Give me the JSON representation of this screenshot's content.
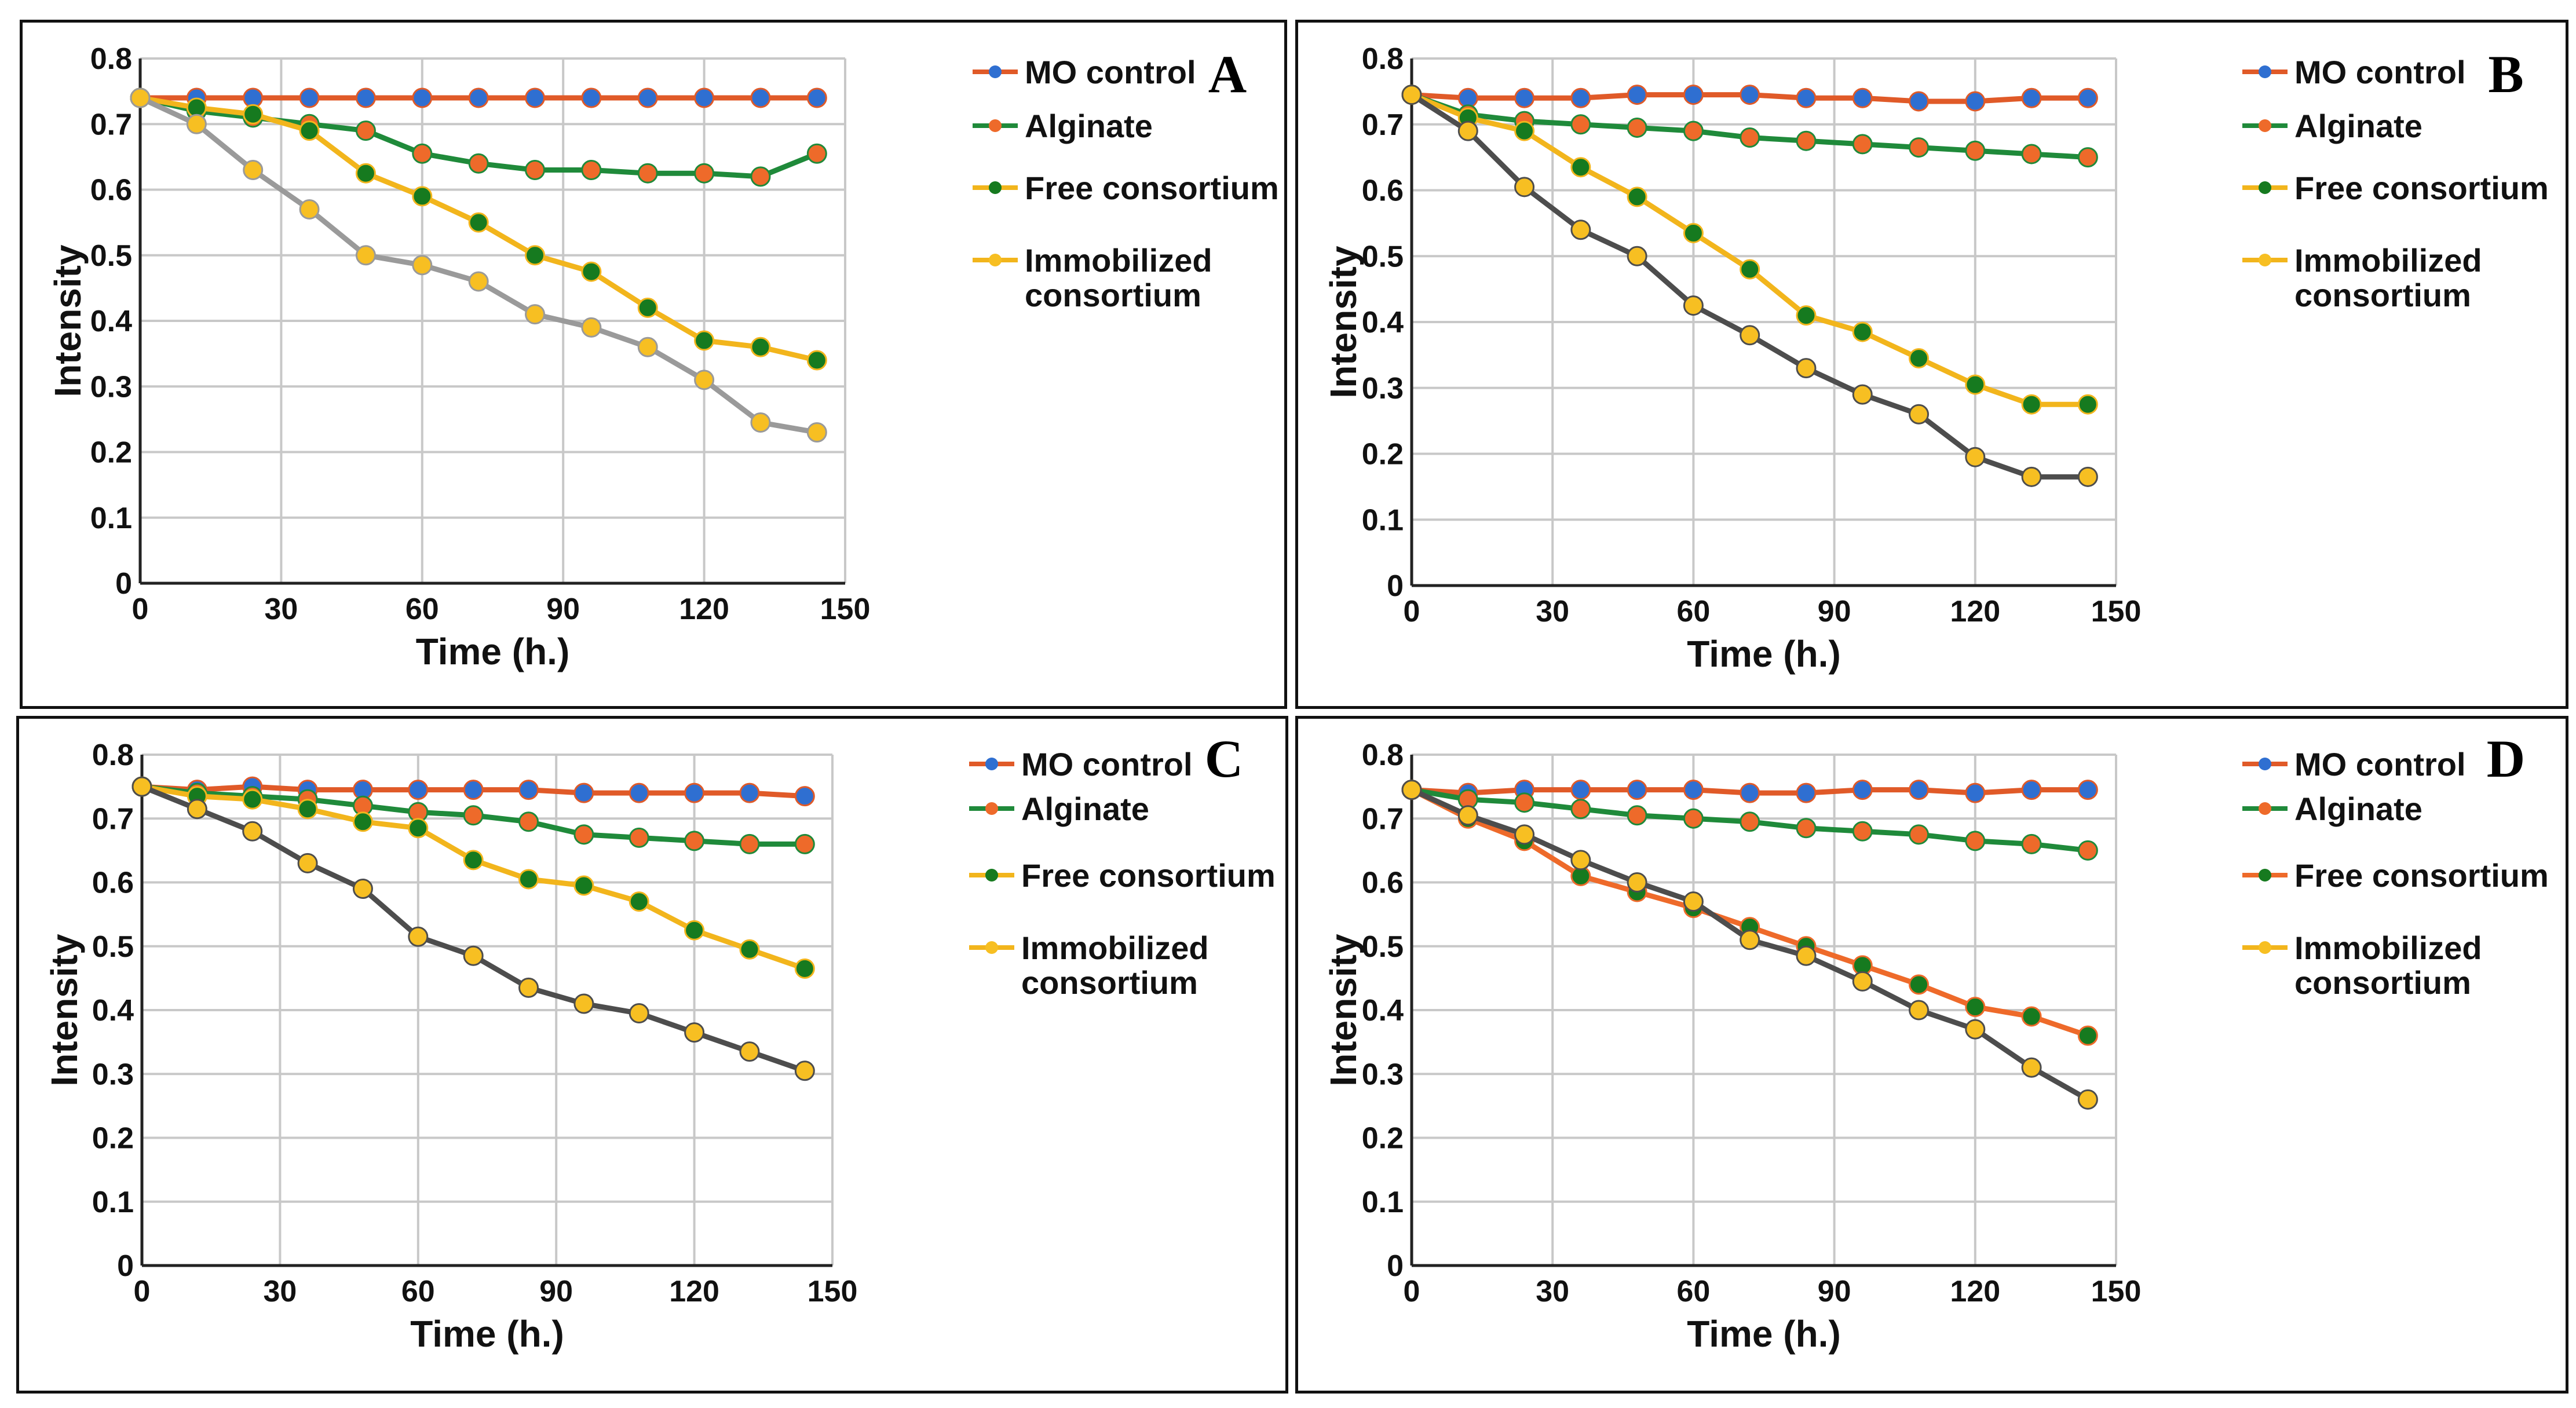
{
  "colors": {
    "mo_control_line": "#e05a28",
    "mo_control_marker": "#2f6fd1",
    "alginate_line": "#1f8a3a",
    "alginate_marker": "#ee6a2a",
    "free_line": "#f2b51c",
    "free_marker": "#167a1f",
    "immob_line_gray": "#9a9a9a",
    "immob_line_dark": "#4d4d4d",
    "immob_marker": "#f7bf22",
    "legend_immob_line": "#f2b51c",
    "grid": "#c8c8c8",
    "axis": "#222222"
  },
  "chart_data": [
    {
      "type": "line",
      "panel_label": "A",
      "xlabel": "Time (h.)",
      "ylabel": "Intensity",
      "xlim": [
        0,
        150
      ],
      "ylim": [
        0,
        0.8
      ],
      "x_ticks": [
        "0",
        "30",
        "60",
        "90",
        "120",
        "150"
      ],
      "y_ticks": [
        "0",
        "0.1",
        "0.2",
        "0.3",
        "0.4",
        "0.5",
        "0.6",
        "0.7",
        "0.8"
      ],
      "x": [
        0,
        12,
        24,
        36,
        48,
        60,
        72,
        84,
        96,
        108,
        120,
        132,
        144
      ],
      "legend": [
        "MO control",
        "Alginate",
        "Free consortium",
        "Immobilized consortium"
      ],
      "legend_lines": [
        [
          "MO control"
        ],
        [
          "Alginate"
        ],
        [
          "Free consortium"
        ],
        [
          "Immobilized",
          "consortium"
        ]
      ],
      "series": [
        {
          "name": "MO control",
          "line": "mo_control_line",
          "marker": "mo_control_marker",
          "values": [
            0.74,
            0.74,
            0.74,
            0.74,
            0.74,
            0.74,
            0.74,
            0.74,
            0.74,
            0.74,
            0.74,
            0.74,
            0.74
          ]
        },
        {
          "name": "Alginate",
          "line": "alginate_line",
          "marker": "alginate_marker",
          "values": [
            0.74,
            0.72,
            0.71,
            0.7,
            0.69,
            0.655,
            0.64,
            0.63,
            0.63,
            0.625,
            0.625,
            0.62,
            0.655
          ]
        },
        {
          "name": "Free consortium",
          "line": "free_line",
          "marker": "free_marker",
          "values": [
            0.74,
            0.725,
            0.715,
            0.69,
            0.625,
            0.59,
            0.55,
            0.5,
            0.475,
            0.42,
            0.37,
            0.36,
            0.34
          ]
        },
        {
          "name": "Immobilized consortium",
          "line": "immob_line_gray",
          "marker": "immob_marker",
          "values": [
            0.74,
            0.7,
            0.63,
            0.57,
            0.5,
            0.485,
            0.46,
            0.41,
            0.39,
            0.36,
            0.31,
            0.245,
            0.23
          ]
        }
      ]
    },
    {
      "type": "line",
      "panel_label": "B",
      "xlabel": "Time (h.)",
      "ylabel": "Intensity",
      "xlim": [
        0,
        150
      ],
      "ylim": [
        0,
        0.8
      ],
      "x_ticks": [
        "0",
        "30",
        "60",
        "90",
        "120",
        "150"
      ],
      "y_ticks": [
        "0",
        "0.1",
        "0.2",
        "0.3",
        "0.4",
        "0.5",
        "0.6",
        "0.7",
        "0.8"
      ],
      "x": [
        0,
        12,
        24,
        36,
        48,
        60,
        72,
        84,
        96,
        108,
        120,
        132,
        144
      ],
      "legend": [
        "MO control",
        "Alginate",
        "Free consortium",
        "Immobilized consortium"
      ],
      "legend_lines": [
        [
          "MO control"
        ],
        [
          "Alginate"
        ],
        [
          "Free consortium"
        ],
        [
          "Immobilized",
          "consortium"
        ]
      ],
      "series": [
        {
          "name": "MO control",
          "line": "mo_control_line",
          "marker": "mo_control_marker",
          "values": [
            0.745,
            0.74,
            0.74,
            0.74,
            0.745,
            0.745,
            0.745,
            0.74,
            0.74,
            0.735,
            0.735,
            0.74,
            0.74
          ]
        },
        {
          "name": "Alginate",
          "line": "alginate_line",
          "marker": "alginate_marker",
          "values": [
            0.745,
            0.715,
            0.705,
            0.7,
            0.695,
            0.69,
            0.68,
            0.675,
            0.67,
            0.665,
            0.66,
            0.655,
            0.65
          ]
        },
        {
          "name": "Free consortium",
          "line": "free_line",
          "marker": "free_marker",
          "values": [
            0.745,
            0.71,
            0.69,
            0.635,
            0.59,
            0.535,
            0.48,
            0.41,
            0.385,
            0.345,
            0.305,
            0.275,
            0.275
          ]
        },
        {
          "name": "Immobilized consortium",
          "line": "immob_line_dark",
          "marker": "immob_marker",
          "values": [
            0.745,
            0.69,
            0.605,
            0.54,
            0.5,
            0.425,
            0.38,
            0.33,
            0.29,
            0.26,
            0.195,
            0.165,
            0.165
          ]
        }
      ]
    },
    {
      "type": "line",
      "panel_label": "C",
      "xlabel": "Time (h.)",
      "ylabel": "Intensity",
      "xlim": [
        0,
        150
      ],
      "ylim": [
        0,
        0.8
      ],
      "x_ticks": [
        "0",
        "30",
        "60",
        "90",
        "120",
        "150"
      ],
      "y_ticks": [
        "0",
        "0.1",
        "0.2",
        "0.3",
        "0.4",
        "0.5",
        "0.6",
        "0.7",
        "0.8"
      ],
      "x": [
        0,
        12,
        24,
        36,
        48,
        60,
        72,
        84,
        96,
        108,
        120,
        132,
        144
      ],
      "legend": [
        "MO control",
        "Alginate",
        "Free consortium",
        "Immobilized consortium"
      ],
      "legend_lines": [
        [
          "MO control"
        ],
        [
          "Alginate"
        ],
        [
          "Free consortium"
        ],
        [
          "Immobilized",
          "consortium"
        ]
      ],
      "series": [
        {
          "name": "MO control",
          "line": "mo_control_line",
          "marker": "mo_control_marker",
          "values": [
            0.75,
            0.745,
            0.75,
            0.745,
            0.745,
            0.745,
            0.745,
            0.745,
            0.74,
            0.74,
            0.74,
            0.74,
            0.735
          ]
        },
        {
          "name": "Alginate",
          "line": "alginate_line",
          "marker": "alginate_marker",
          "values": [
            0.75,
            0.74,
            0.735,
            0.73,
            0.72,
            0.71,
            0.705,
            0.695,
            0.675,
            0.67,
            0.665,
            0.66,
            0.66
          ]
        },
        {
          "name": "Free consortium",
          "line": "free_line",
          "marker": "free_marker",
          "values": [
            0.75,
            0.735,
            0.73,
            0.715,
            0.695,
            0.685,
            0.635,
            0.605,
            0.595,
            0.57,
            0.525,
            0.495,
            0.465
          ]
        },
        {
          "name": "Immobilized consortium",
          "line": "immob_line_dark",
          "marker": "immob_marker",
          "values": [
            0.75,
            0.715,
            0.68,
            0.63,
            0.59,
            0.515,
            0.485,
            0.435,
            0.41,
            0.395,
            0.365,
            0.335,
            0.305
          ]
        }
      ]
    },
    {
      "type": "line",
      "panel_label": "D",
      "xlabel": "Time (h.)",
      "ylabel": "Intensity",
      "xlim": [
        0,
        150
      ],
      "ylim": [
        0,
        0.8
      ],
      "x_ticks": [
        "0",
        "30",
        "60",
        "90",
        "120",
        "150"
      ],
      "y_ticks": [
        "0",
        "0.1",
        "0.2",
        "0.3",
        "0.4",
        "0.5",
        "0.6",
        "0.7",
        "0.8"
      ],
      "x": [
        0,
        12,
        24,
        36,
        48,
        60,
        72,
        84,
        96,
        108,
        120,
        132,
        144
      ],
      "legend": [
        "MO control",
        "Alginate",
        "Free consortium",
        "Immobilized consortium"
      ],
      "legend_lines": [
        [
          "MO control"
        ],
        [
          "Alginate"
        ],
        [
          "Free consortium"
        ],
        [
          "Immobilized",
          "consortium"
        ]
      ],
      "series": [
        {
          "name": "MO control",
          "line": "mo_control_line",
          "marker": "mo_control_marker",
          "values": [
            0.745,
            0.74,
            0.745,
            0.745,
            0.745,
            0.745,
            0.74,
            0.74,
            0.745,
            0.745,
            0.74,
            0.745,
            0.745
          ]
        },
        {
          "name": "Alginate",
          "line": "alginate_line",
          "marker": "alginate_marker",
          "values": [
            0.745,
            0.73,
            0.725,
            0.715,
            0.705,
            0.7,
            0.695,
            0.685,
            0.68,
            0.675,
            0.665,
            0.66,
            0.65
          ]
        },
        {
          "name": "Free consortium",
          "line": "alginate_marker",
          "marker": "free_marker",
          "values": [
            0.745,
            0.7,
            0.665,
            0.61,
            0.585,
            0.56,
            0.53,
            0.5,
            0.47,
            0.44,
            0.405,
            0.39,
            0.36
          ]
        },
        {
          "name": "Immobilized consortium",
          "line": "immob_line_dark",
          "marker": "immob_marker",
          "values": [
            0.745,
            0.705,
            0.675,
            0.635,
            0.6,
            0.57,
            0.51,
            0.485,
            0.445,
            0.4,
            0.37,
            0.31,
            0.26
          ]
        }
      ]
    }
  ]
}
